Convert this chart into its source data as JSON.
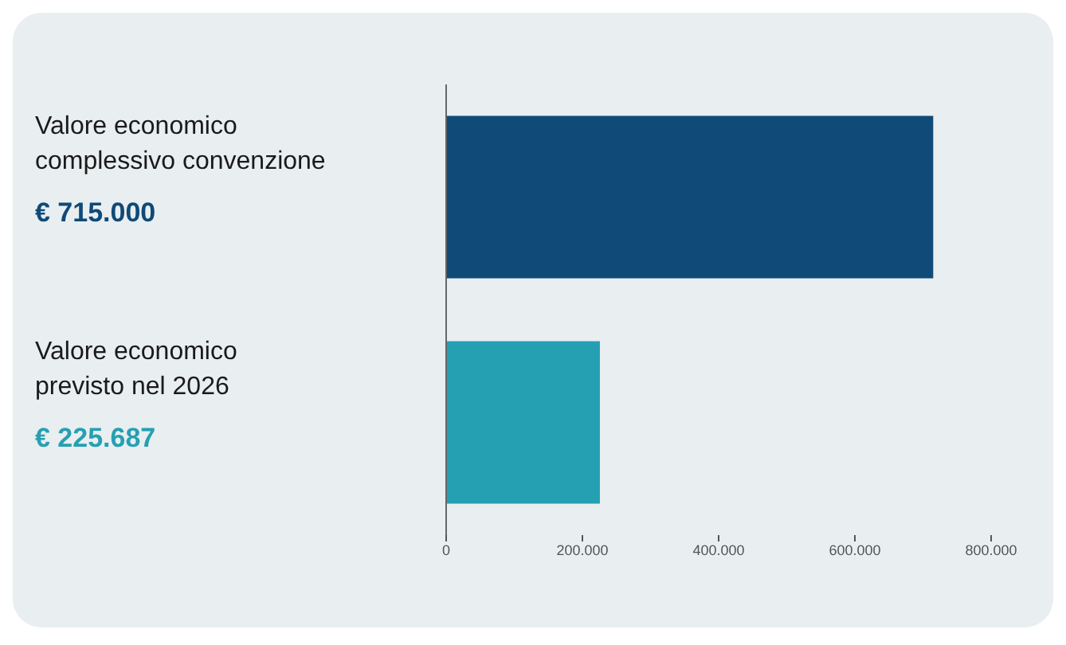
{
  "chart_data": {
    "type": "bar",
    "orientation": "horizontal",
    "categories": [
      "Valore economico complessivo convenzione",
      "Valore economico previsto nel 2026"
    ],
    "values": [
      715000,
      225687
    ],
    "colors": [
      "#0f4a78",
      "#25a0b3"
    ],
    "value_labels": [
      "€ 715.000",
      "€ 225.687"
    ],
    "xlim": [
      0,
      800000
    ],
    "xticks": [
      0,
      {
        "value": 200000,
        "label": "200.000"
      },
      {
        "value": 400000,
        "label": "400.000"
      },
      {
        "value": 600000,
        "label": "600.000"
      },
      {
        "value": 800000,
        "label": "800.000"
      }
    ]
  }
}
